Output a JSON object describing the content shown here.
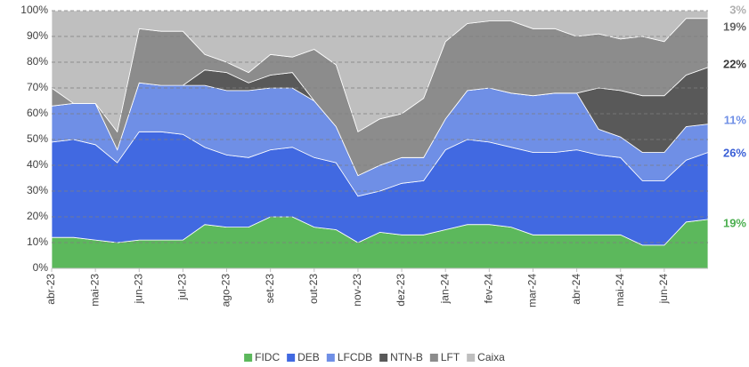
{
  "chart_data": {
    "type": "stacked_area",
    "categories": [
      "abr-23",
      null,
      "mai-23",
      null,
      "jun-23",
      null,
      "jul-23",
      null,
      "ago-23",
      null,
      "set-23",
      null,
      "out-23",
      null,
      "nov-23",
      null,
      "dez-23",
      null,
      "jan-24",
      null,
      "fev-24",
      null,
      "mar-24",
      null,
      "abr-24",
      null,
      "mai-24",
      null,
      "jun-24",
      null,
      null
    ],
    "ylim": [
      0,
      100
    ],
    "yticks": [
      {
        "value": 0,
        "label": "0%"
      },
      {
        "value": 10,
        "label": "10%"
      },
      {
        "value": 20,
        "label": "20%"
      },
      {
        "value": 30,
        "label": "30%"
      },
      {
        "value": 40,
        "label": "40%"
      },
      {
        "value": 50,
        "label": "50%"
      },
      {
        "value": 60,
        "label": "60%"
      },
      {
        "value": 70,
        "label": "70%"
      },
      {
        "value": 80,
        "label": "80%"
      },
      {
        "value": 90,
        "label": "90%"
      },
      {
        "value": 100,
        "label": "100%"
      }
    ],
    "grid": true,
    "legend": "bottom",
    "series": [
      {
        "name": "FIDC",
        "color": "#5cb85c",
        "label_color": "#4caf50",
        "values": [
          12,
          12,
          11,
          10,
          11,
          11,
          11,
          17,
          16,
          16,
          20,
          20,
          16,
          15,
          10,
          14,
          13,
          13,
          15,
          17,
          17,
          16,
          13,
          13,
          13,
          13,
          13,
          9,
          9,
          18,
          19
        ],
        "value_labels": [
          null,
          null,
          null,
          null,
          null,
          null,
          null,
          null,
          null,
          null,
          null,
          null,
          null,
          null,
          null,
          null,
          null,
          null,
          null,
          null,
          null,
          null,
          null,
          null,
          null,
          null,
          null,
          null,
          null,
          null,
          "19%"
        ]
      },
      {
        "name": "DEB",
        "color": "#4169e1",
        "label_color": "#3a5fd6",
        "values": [
          37,
          38,
          37,
          31,
          42,
          42,
          41,
          30,
          28,
          27,
          26,
          27,
          27,
          26,
          18,
          16,
          20,
          21,
          31,
          33,
          32,
          31,
          32,
          32,
          33,
          31,
          30,
          25,
          25,
          24,
          26
        ],
        "value_labels": [
          null,
          null,
          null,
          null,
          null,
          null,
          null,
          null,
          null,
          null,
          null,
          null,
          null,
          null,
          null,
          null,
          null,
          null,
          null,
          null,
          null,
          null,
          null,
          null,
          null,
          null,
          null,
          null,
          null,
          null,
          "26%"
        ]
      },
      {
        "name": "LFCDB",
        "color": "#6f8fe6",
        "label_color": "#6f8fe6",
        "values": [
          14,
          14,
          16,
          5,
          19,
          18,
          19,
          24,
          25,
          26,
          24,
          23,
          22,
          14,
          8,
          10,
          10,
          9,
          12,
          19,
          21,
          21,
          22,
          23,
          22,
          10,
          8,
          11,
          11,
          13,
          11
        ],
        "value_labels": [
          null,
          null,
          null,
          null,
          null,
          null,
          null,
          null,
          null,
          null,
          null,
          null,
          null,
          null,
          null,
          null,
          null,
          null,
          null,
          null,
          null,
          null,
          null,
          null,
          null,
          null,
          null,
          null,
          null,
          null,
          "11%"
        ]
      },
      {
        "name": "NTN-B",
        "color": "#595959",
        "label_color": "#3a3a3a",
        "values": [
          0,
          0,
          0,
          0,
          0,
          0,
          0,
          6,
          7,
          3,
          5,
          6,
          0,
          0,
          0,
          0,
          0,
          0,
          0,
          0,
          0,
          0,
          0,
          0,
          0,
          16,
          18,
          22,
          22,
          20,
          22
        ],
        "value_labels": [
          null,
          null,
          null,
          null,
          null,
          null,
          null,
          null,
          null,
          null,
          null,
          null,
          null,
          null,
          null,
          null,
          null,
          null,
          null,
          null,
          null,
          null,
          null,
          null,
          null,
          null,
          null,
          null,
          null,
          null,
          "22%"
        ]
      },
      {
        "name": "LFT",
        "color": "#8c8c8c",
        "label_color": "#666666",
        "values": [
          7,
          0,
          0,
          7,
          21,
          21,
          21,
          6,
          4,
          4,
          8,
          6,
          20,
          24,
          17,
          18,
          17,
          23,
          30,
          26,
          26,
          28,
          26,
          25,
          22,
          21,
          20,
          23,
          21,
          22,
          19
        ],
        "value_labels": [
          null,
          null,
          null,
          null,
          null,
          null,
          null,
          null,
          null,
          null,
          null,
          null,
          null,
          null,
          null,
          null,
          null,
          null,
          null,
          null,
          null,
          null,
          null,
          null,
          null,
          null,
          null,
          null,
          null,
          null,
          "19%"
        ]
      },
      {
        "name": "Caixa",
        "color": "#bfbfbf",
        "label_color": "#b0b0b0",
        "values": [
          30,
          36,
          36,
          47,
          7,
          8,
          8,
          17,
          20,
          24,
          17,
          18,
          15,
          21,
          47,
          42,
          40,
          34,
          12,
          5,
          4,
          4,
          7,
          7,
          10,
          9,
          11,
          10,
          12,
          3,
          3
        ],
        "value_labels": [
          null,
          null,
          null,
          null,
          null,
          null,
          null,
          null,
          null,
          null,
          null,
          null,
          null,
          null,
          null,
          null,
          null,
          null,
          null,
          null,
          null,
          null,
          null,
          null,
          null,
          null,
          null,
          null,
          null,
          null,
          "3%"
        ]
      }
    ]
  }
}
